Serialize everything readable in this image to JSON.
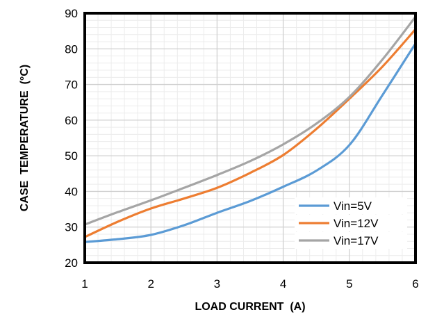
{
  "chart_data": {
    "type": "line",
    "title": "",
    "xlabel": "LOAD CURRENT  (A)",
    "ylabel": "CASE  TEMPERATURE  (°C)",
    "xlim": [
      1,
      6
    ],
    "ylim": [
      20,
      90
    ],
    "x_ticks": [
      "1",
      "2",
      "3",
      "4",
      "5",
      "6"
    ],
    "y_ticks": [
      "20",
      "30",
      "40",
      "50",
      "60",
      "70",
      "80",
      "90"
    ],
    "grid": true,
    "legend_position": "bottom-right",
    "x": [
      1,
      1.5,
      2,
      2.5,
      3,
      3.5,
      4,
      4.5,
      5,
      5.5,
      6
    ],
    "series": [
      {
        "name": "Vin=5V",
        "color": "#5b9bd5",
        "values": [
          25.8,
          26.6,
          27.8,
          30.5,
          34.0,
          37.3,
          41.3,
          45.8,
          53.0,
          67.0,
          81.5
        ]
      },
      {
        "name": "Vin=12V",
        "color": "#ed7d31",
        "values": [
          27.2,
          31.5,
          35.2,
          38.0,
          41.0,
          45.2,
          50.2,
          57.5,
          66.0,
          75.0,
          85.5
        ]
      },
      {
        "name": "Vin=17V",
        "color": "#a5a5a5",
        "values": [
          30.7,
          34.2,
          37.5,
          41.0,
          44.6,
          48.5,
          53.2,
          59.0,
          66.5,
          77.0,
          89.0
        ]
      }
    ]
  }
}
